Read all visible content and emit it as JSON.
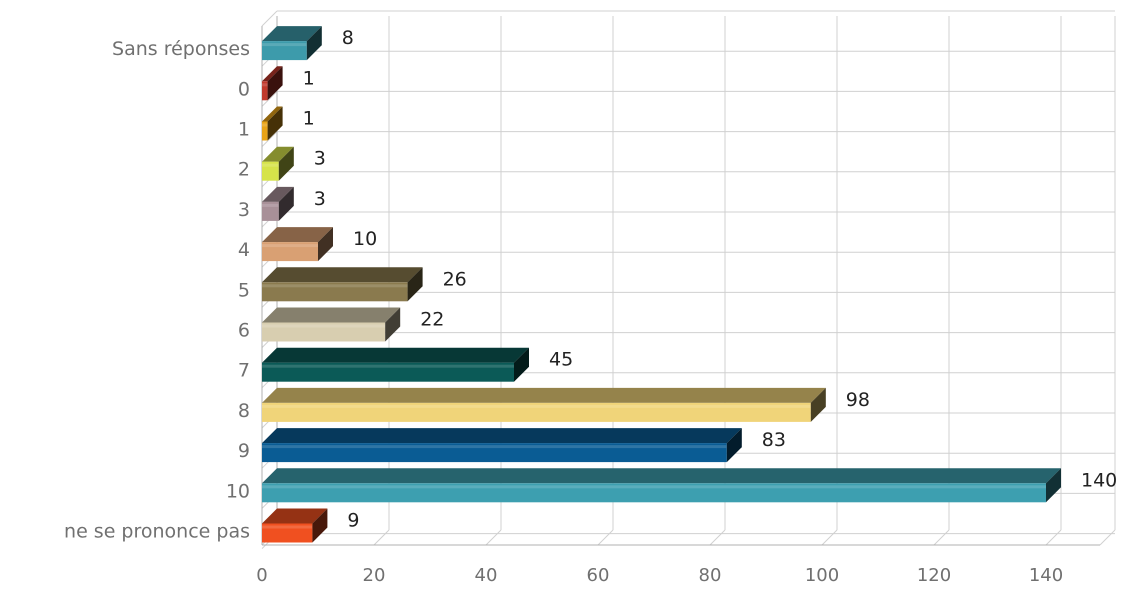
{
  "chart_data": {
    "type": "bar",
    "orientation": "horizontal",
    "style": "3d",
    "title": "",
    "xlabel": "",
    "ylabel": "",
    "xlim": [
      0,
      150
    ],
    "x_ticks": [
      0,
      20,
      40,
      60,
      80,
      100,
      120,
      140
    ],
    "grid": true,
    "legend": "none",
    "categories": [
      "Sans réponses",
      "0",
      "1",
      "2",
      "3",
      "4",
      "5",
      "6",
      "7",
      "8",
      "9",
      "10",
      "ne se prononce pas"
    ],
    "values": [
      8,
      1,
      1,
      3,
      3,
      10,
      26,
      22,
      45,
      98,
      83,
      140,
      9
    ],
    "colors": [
      "#3d9bab",
      "#c0392b",
      "#e8a317",
      "#d6e34a",
      "#a89098",
      "#d9a073",
      "#8a7a4e",
      "#d8ceb0",
      "#0b5a57",
      "#f0d479",
      "#0a5c94",
      "#3d9fb0",
      "#f05020"
    ]
  }
}
